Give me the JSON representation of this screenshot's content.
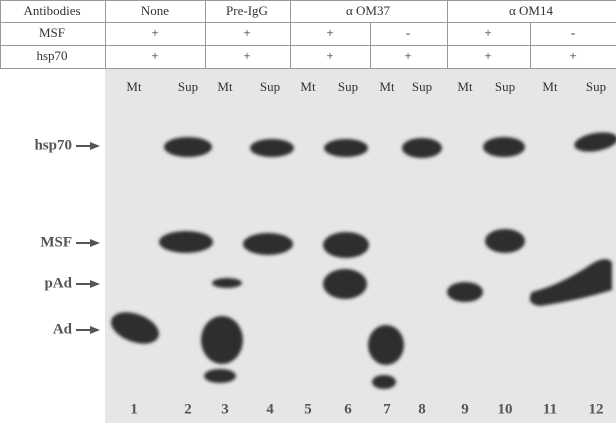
{
  "table": {
    "header": [
      "Antibodies",
      "None",
      "Pre-IgG",
      "α OM37",
      "α OM14"
    ],
    "rows": [
      [
        "MSF",
        "+",
        "+",
        "+",
        "-",
        "+",
        "-"
      ],
      [
        "hsp70",
        "+",
        "+",
        "+",
        "+",
        "+",
        "+"
      ]
    ]
  },
  "lane_labels": [
    "Mt",
    "Sup",
    "Mt",
    "Sup",
    "Mt",
    "Sup",
    "Mt",
    "Sup",
    "Mt",
    "Sup",
    "Mt",
    "Sup"
  ],
  "markers": [
    "hsp70",
    "MSF",
    "pAd",
    "Ad"
  ],
  "lane_numbers": [
    "1",
    "2",
    "3",
    "4",
    "5",
    "6",
    "7",
    "8",
    "9",
    "10",
    "11",
    "12"
  ]
}
